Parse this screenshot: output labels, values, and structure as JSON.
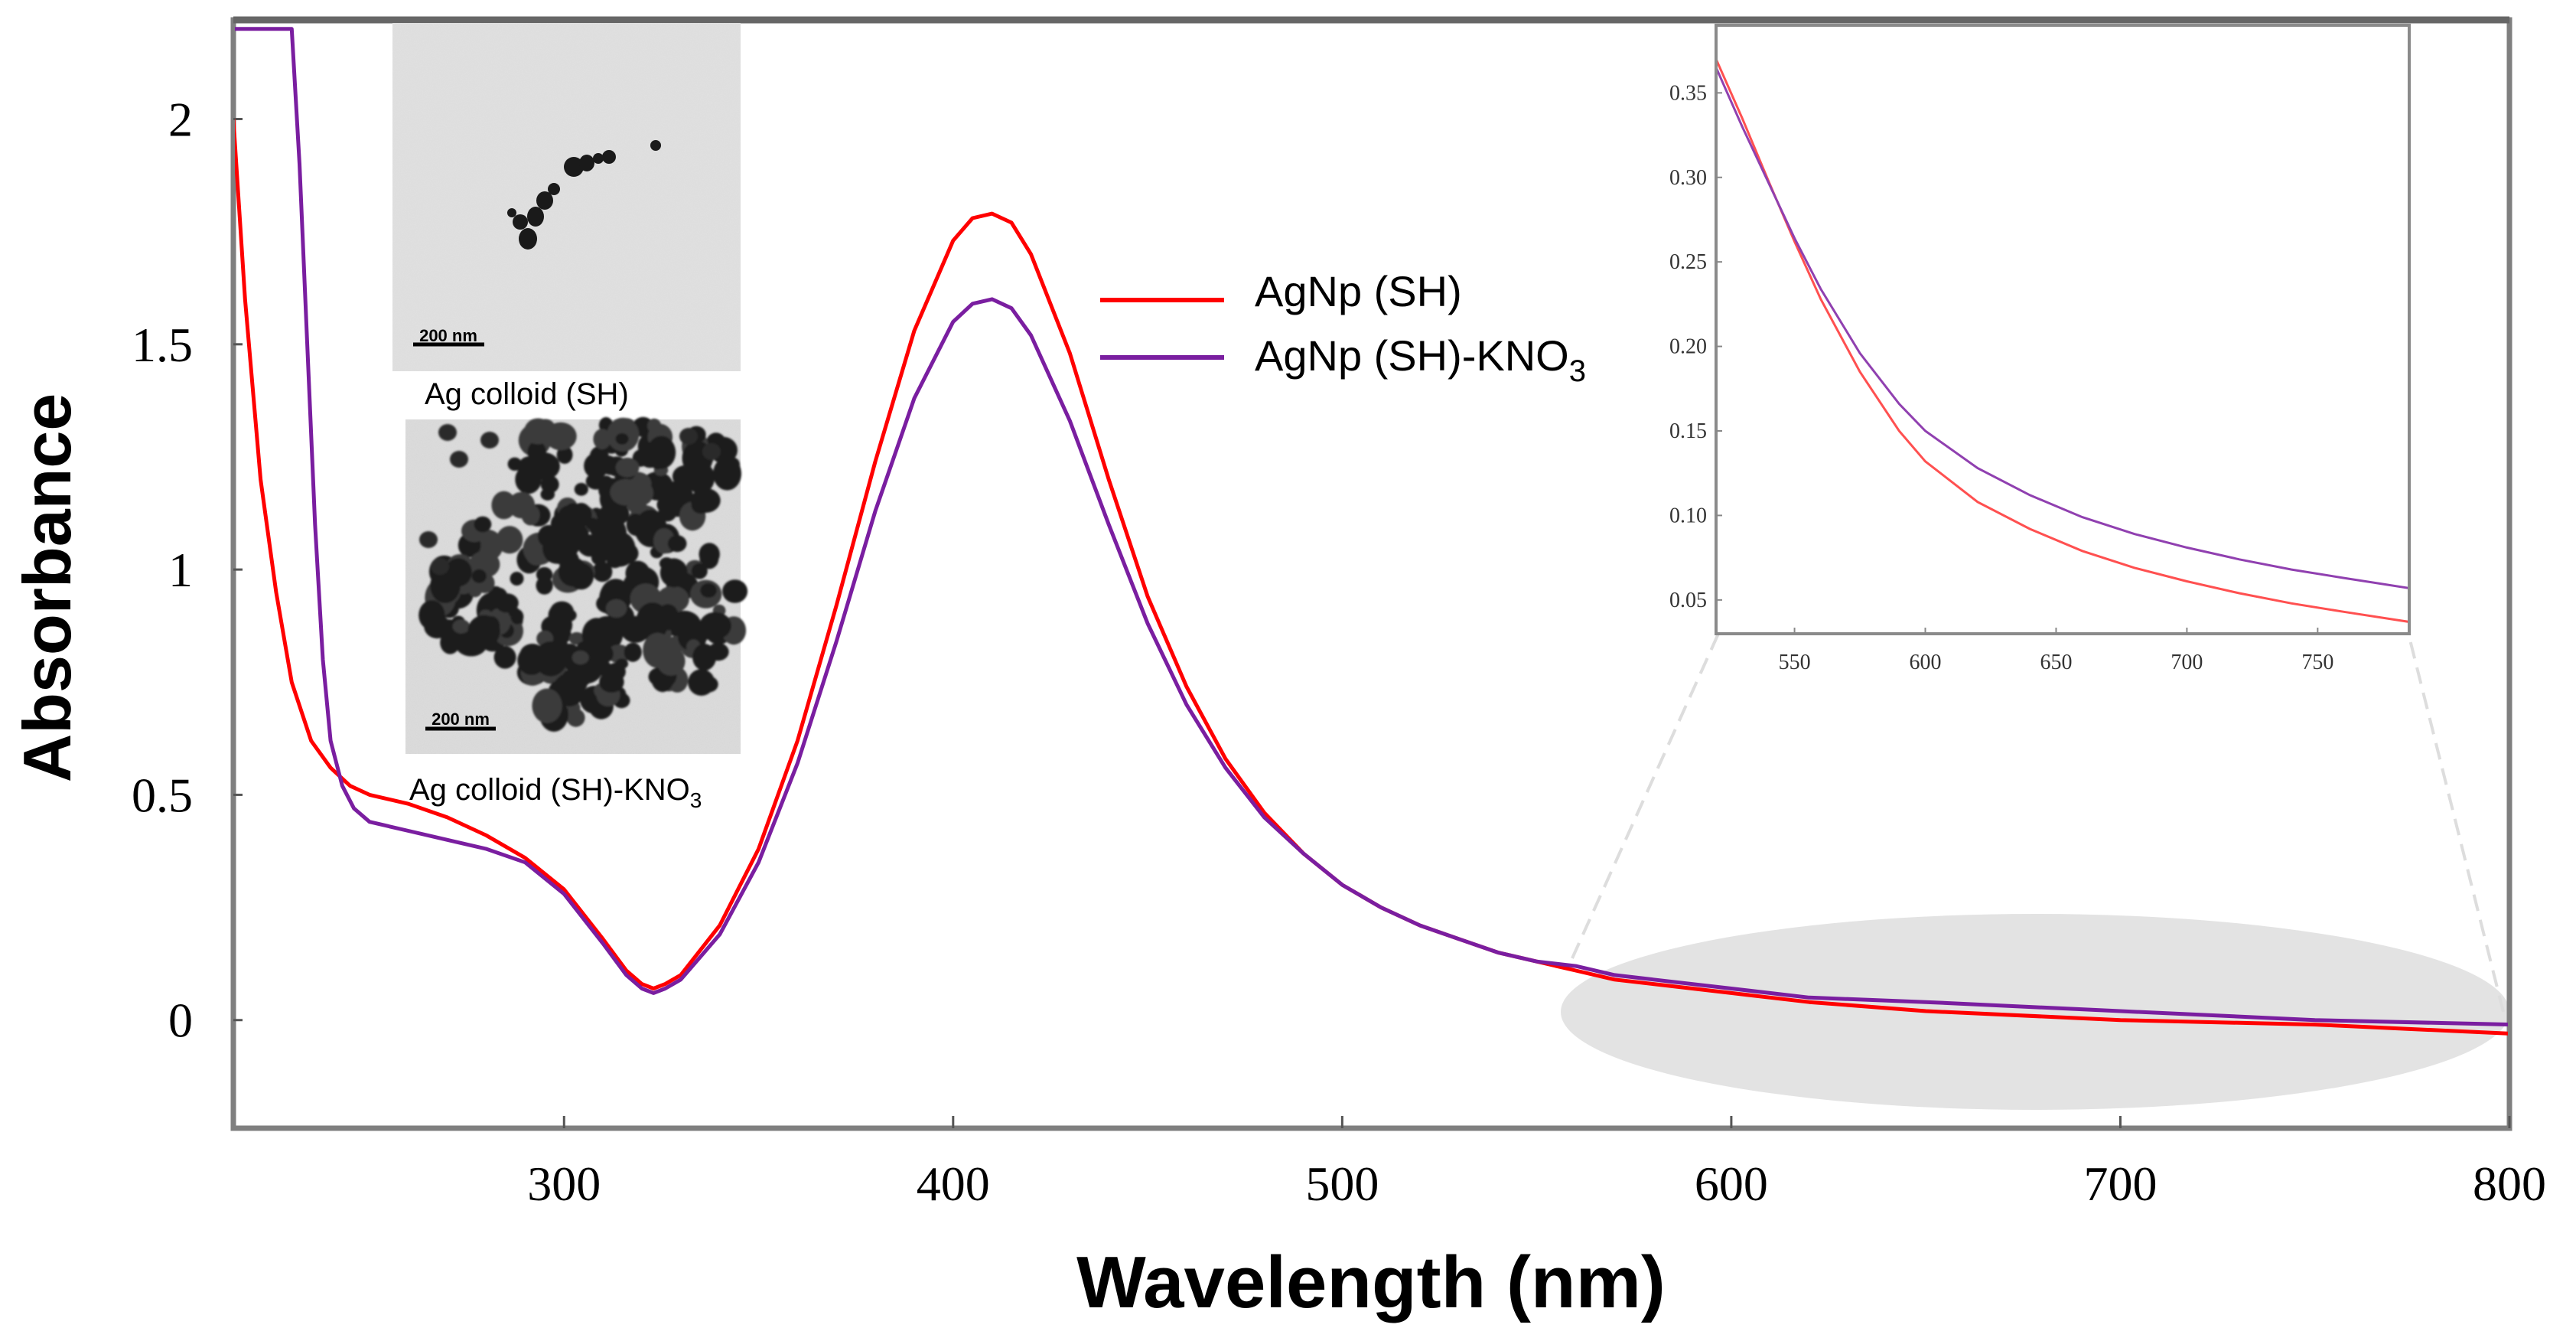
{
  "chart_data": {
    "type": "line",
    "xlabel": "Wavelength (nm)",
    "ylabel": "Absorbance",
    "xlim": [
      215,
      800
    ],
    "ylim": [
      -0.24,
      2.22
    ],
    "x_ticks": [
      300,
      400,
      500,
      600,
      700,
      800
    ],
    "y_ticks": [
      0,
      0.5,
      1,
      1.5,
      2
    ],
    "legend_position": "center-right",
    "series": [
      {
        "name": "AgNp (SH)",
        "color": "#ff0000",
        "x": [
          215,
          218,
          222,
          226,
          230,
          235,
          240,
          245,
          250,
          260,
          270,
          280,
          290,
          300,
          310,
          316,
          320,
          323,
          326,
          330,
          340,
          350,
          360,
          370,
          380,
          390,
          400,
          405,
          410,
          415,
          420,
          430,
          440,
          450,
          460,
          470,
          480,
          490,
          500,
          510,
          520,
          530,
          540,
          550,
          560,
          570,
          580,
          600,
          620,
          650,
          700,
          750,
          800
        ],
        "y": [
          2.0,
          1.6,
          1.2,
          0.95,
          0.75,
          0.62,
          0.56,
          0.52,
          0.5,
          0.48,
          0.45,
          0.41,
          0.36,
          0.29,
          0.18,
          0.11,
          0.08,
          0.07,
          0.08,
          0.1,
          0.21,
          0.38,
          0.62,
          0.92,
          1.24,
          1.53,
          1.73,
          1.78,
          1.79,
          1.77,
          1.7,
          1.48,
          1.2,
          0.94,
          0.74,
          0.58,
          0.46,
          0.37,
          0.3,
          0.25,
          0.21,
          0.18,
          0.15,
          0.13,
          0.11,
          0.09,
          0.08,
          0.06,
          0.04,
          0.02,
          0.0,
          -0.01,
          -0.03
        ]
      },
      {
        "name": "AgNp (SH)-KNO3",
        "color": "#7a1ea0",
        "x": [
          215,
          220,
          225,
          230,
          232,
          234,
          236,
          238,
          240,
          243,
          246,
          250,
          260,
          270,
          280,
          290,
          300,
          310,
          316,
          320,
          323,
          326,
          330,
          340,
          350,
          360,
          370,
          380,
          390,
          400,
          405,
          410,
          415,
          420,
          430,
          440,
          450,
          460,
          470,
          480,
          490,
          500,
          510,
          520,
          530,
          540,
          550,
          560,
          570,
          580,
          600,
          620,
          650,
          700,
          750,
          800
        ],
        "y": [
          2.2,
          2.2,
          2.2,
          2.2,
          1.9,
          1.5,
          1.1,
          0.8,
          0.62,
          0.52,
          0.47,
          0.44,
          0.42,
          0.4,
          0.38,
          0.35,
          0.28,
          0.17,
          0.1,
          0.07,
          0.06,
          0.07,
          0.09,
          0.19,
          0.35,
          0.57,
          0.84,
          1.13,
          1.38,
          1.55,
          1.59,
          1.6,
          1.58,
          1.52,
          1.33,
          1.1,
          0.88,
          0.7,
          0.56,
          0.45,
          0.37,
          0.3,
          0.25,
          0.21,
          0.18,
          0.15,
          0.13,
          0.12,
          0.1,
          0.09,
          0.07,
          0.05,
          0.04,
          0.02,
          0.0,
          -0.01
        ]
      }
    ],
    "inset": {
      "type": "line",
      "xlim": [
        520,
        785
      ],
      "ylim": [
        0.03,
        0.39
      ],
      "x_ticks": [
        550,
        600,
        650,
        700,
        750
      ],
      "y_ticks": [
        0.05,
        0.1,
        0.15,
        0.2,
        0.25,
        0.3,
        0.35
      ],
      "y_tick_labels": [
        "0.05",
        "0.10",
        "0.15",
        "0.20",
        "0.25",
        "0.30",
        "0.35"
      ],
      "series": [
        {
          "name": "AgNp (SH)",
          "color": "#ff5050",
          "x": [
            520,
            530,
            540,
            550,
            560,
            575,
            590,
            600,
            620,
            640,
            660,
            680,
            700,
            720,
            740,
            760,
            785
          ],
          "y": [
            0.37,
            0.335,
            0.298,
            0.262,
            0.228,
            0.185,
            0.15,
            0.132,
            0.108,
            0.092,
            0.079,
            0.069,
            0.061,
            0.054,
            0.048,
            0.043,
            0.037
          ]
        },
        {
          "name": "AgNp (SH)-KNO3",
          "color": "#9040b0",
          "x": [
            520,
            530,
            540,
            550,
            560,
            575,
            590,
            600,
            620,
            640,
            660,
            680,
            700,
            720,
            740,
            760,
            785
          ],
          "y": [
            0.365,
            0.33,
            0.297,
            0.264,
            0.234,
            0.196,
            0.166,
            0.15,
            0.128,
            0.112,
            0.099,
            0.089,
            0.081,
            0.074,
            0.068,
            0.063,
            0.057
          ]
        }
      ]
    }
  },
  "legend": {
    "items": [
      {
        "label": "AgNp (SH)",
        "color": "#ff0000"
      },
      {
        "label_main": "AgNp (SH)-KNO",
        "label_sub": "3",
        "color": "#7a1ea0"
      }
    ]
  },
  "tem_images": [
    {
      "scale_bar": "200 nm",
      "caption": "Ag colloid (SH)"
    },
    {
      "scale_bar": "200 nm",
      "caption_main": "Ag colloid (SH)-KNO",
      "caption_sub": "3"
    }
  ]
}
